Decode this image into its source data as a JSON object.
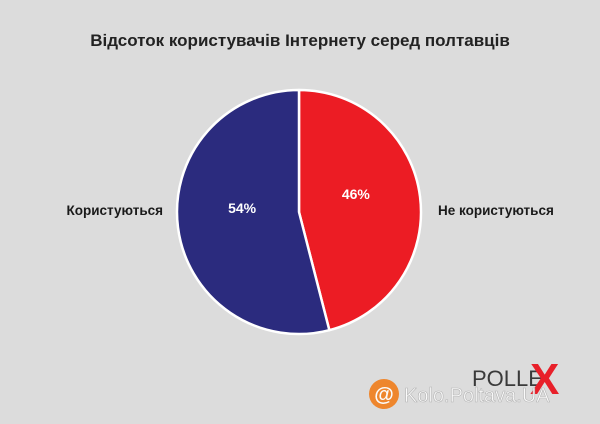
{
  "chart_data": {
    "type": "pie",
    "title": "Відсоток користувачів Інтернету серед полтавців",
    "slices": [
      {
        "label": "Користуються",
        "value": 54,
        "value_label": "54%",
        "color": "#2b2b7e"
      },
      {
        "label": "Не користуються",
        "value": 46,
        "value_label": "46%",
        "color": "#ec1c24"
      }
    ],
    "slice_border_color": "#ffffff"
  },
  "branding": {
    "logo_text_main": "POLLE",
    "logo_text_x": "X",
    "logo_x_color": "#e8202a",
    "watermark_text": "Kolo.Poltava.UA",
    "watermark_icon": "at-sign-icon",
    "watermark_icon_color": "#f07d1b"
  }
}
